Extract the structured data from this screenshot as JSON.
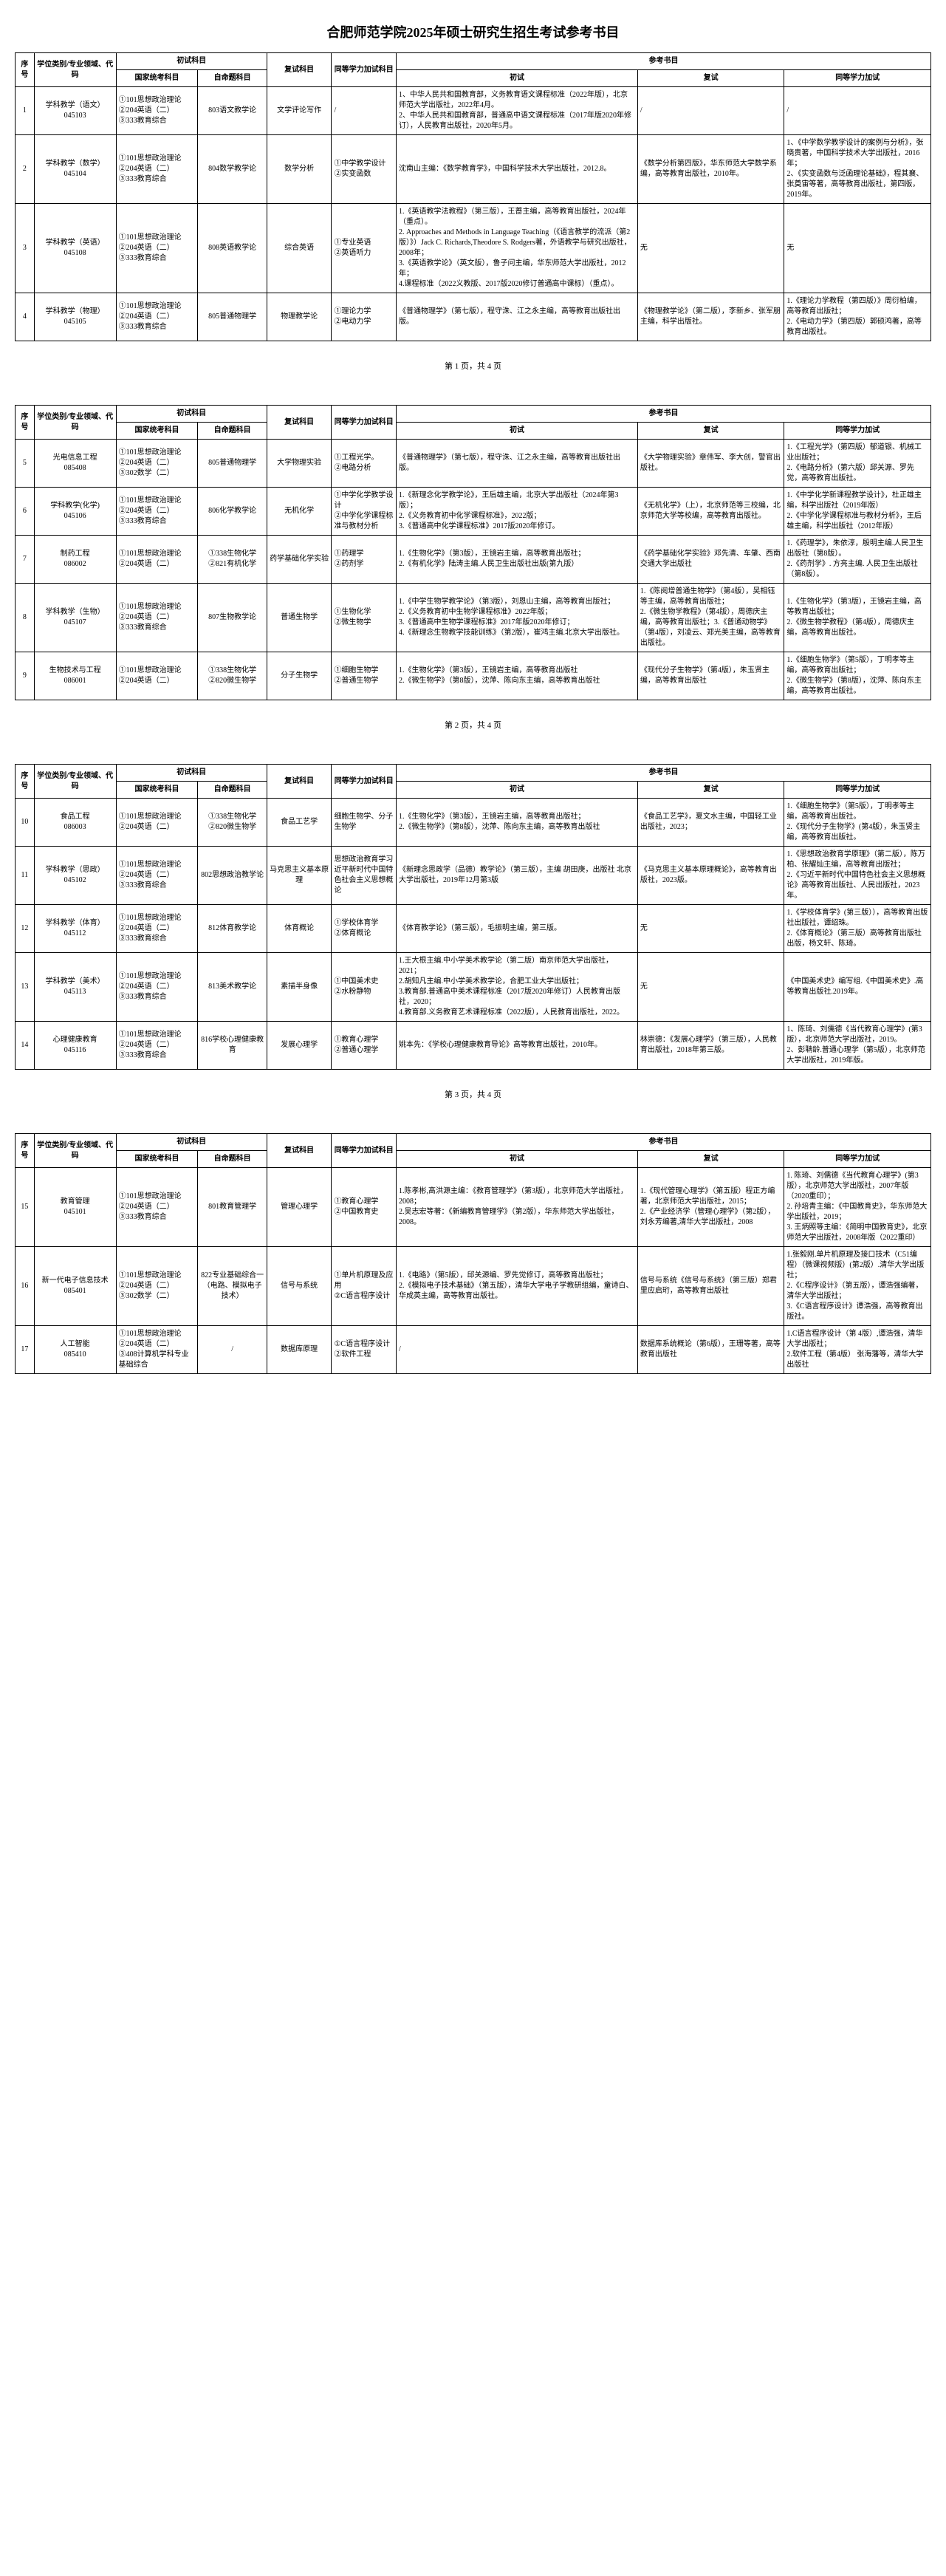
{
  "title": "合肥师范学院2025年硕士研究生招生考试参考书目",
  "headers": {
    "seq": "序号",
    "major": "学位类别/专业领域、代码",
    "prelim": "初试科目",
    "prelim_gov": "国家统考科目",
    "prelim_self": "自命题科目",
    "reexam": "复试科目",
    "same": "同等学力加试科目",
    "refs": "参考书目",
    "ref_prelim": "初试",
    "ref_reexam": "复试",
    "ref_same": "同等学力加试"
  },
  "footers": [
    "第 1 页，共 4 页",
    "第 2 页，共 4 页",
    "第 3 页，共 4 页"
  ],
  "pages": [
    [
      {
        "n": "1",
        "major": "学科教学（语文）\n045103",
        "e1": "①101思想政治理论\n②204英语（二）\n③333教育综合",
        "e2": "803语文教学论",
        "re": "文学评论写作",
        "sm": "/",
        "r1": "1、中华人民共和国教育部，义务教育语文课程标准（2022年版），北京师范大学出版社，2022年4月。\n2、中华人民共和国教育部，普通高中语文课程标准（2017年版2020年修订），人民教育出版社，2020年5月。",
        "r2": "/",
        "r3": "/"
      },
      {
        "n": "2",
        "major": "学科教学（数学）\n045104",
        "e1": "①101思想政治理论\n②204英语（二）\n③333教育综合",
        "e2": "804数学教学论",
        "re": "数学分析",
        "sm": "①中学教学设计\n②实变函数",
        "r1": "沈南山主编：《数学教育学》，中国科学技术大学出版社，2012.8。",
        "r2": "《数学分析第四版》，华东师范大学数学系编，高等教育出版社，2010年。",
        "r3": "1、《中学数学教学设计的案例与分析》，张晓贵著，中国科学技术大学出版社，2016年；\n2、《实变函数与泛函理论基础》，程其襄、张奠宙等著，高等教育出版社，第四版，2019年。"
      },
      {
        "n": "3",
        "major": "学科教学（英语）\n045108",
        "e1": "①101思想政治理论\n②204英语（二）\n③333教育综合",
        "e2": "808英语教学论",
        "re": "综合英语",
        "sm": "①专业英语\n②英语听力",
        "r1": "1.《英语教学法教程》（第三版），王蔷主编，高等教育出版社，2024年（重点）。\n2. Approaches and Methods in Language Teaching（《语言教学的流派（第2版）》）Jack C. Richards,Theodore S. Rodgers著，外语教学与研究出版社，2008年；\n3.《英语教学论》（英文版），鲁子问主编，华东师范大学出版社，2012年；\n4.课程标准（2022义教版、2017版2020修订普通高中课标）（重点）。",
        "r2": "无",
        "r3": "无"
      },
      {
        "n": "4",
        "major": "学科教学（物理）\n045105",
        "e1": "①101思想政治理论\n②204英语（二）\n③333教育综合",
        "e2": "805普通物理学",
        "re": "物理教学论",
        "sm": "①理论力学\n②电动力学",
        "r1": "《普通物理学》（第七版），程守洙、江之永主编，高等教育出版社出版。",
        "r2": "《物理教学论》（第二版），李新乡、张军朋主编，科学出版社。",
        "r3": "1.《理论力学教程（第四版）》周衍柏编，高等教育出版社；\n2.《电动力学》（第四版）郭硕鸿著，高等教育出版社。"
      }
    ],
    [
      {
        "n": "5",
        "major": "光电信息工程\n085408",
        "e1": "①101思想政治理论\n②204英语（二）\n③302数学（二）",
        "e2": "805普通物理学",
        "re": "大学物理实验",
        "sm": "①工程光学。\n②电路分析",
        "r1": "《普通物理学》（第七版），程守洙、江之永主编，高等教育出版社出版。",
        "r2": "《大学物理实验》章伟军、李大创，警官出版社。",
        "r3": "1.《工程光学》（第四版）郁道银、机械工业出版社；\n2.《电路分析》（第六版）邱关源、罗先觉，高等教育出版社。"
      },
      {
        "n": "6",
        "major": "学科教学(化学)\n045106",
        "e1": "①101思想政治理论\n②204英语（二）\n③333教育综合",
        "e2": "806化学教学论",
        "re": "无机化学",
        "sm": "①中学化学教学设计\n②中学化学课程标准与教材分析",
        "r1": "1.《新理念化学教学论》，王后雄主编，北京大学出版社（2024年第3版）；\n2.《义务教育初中化学课程标准》，2022版；\n3.《普通高中化学课程标准》2017版2020年修订。",
        "r2": "《无机化学》（上），北京师范等三校编，北京师范大学等校编，高等教育出版社。",
        "r3": "1.《中学化学新课程教学设计》，杜正雄主编，科学出版社（2019年版）\n2.《中学化学课程标准与教材分析》，王后雄主编，科学出版社（2012年版）"
      },
      {
        "n": "7",
        "major": "制药工程\n086002",
        "e1": "①101思想政治理论\n②204英语（二）",
        "e2": "①338生物化学\n②821有机化学",
        "re": "药学基础化学实验",
        "sm": "①药理学\n②药剂学",
        "r1": "1.《生物化学》（第3版），王镜岩主编，高等教育出版社；\n2.《有机化学》陆涛主编.人民卫生出版社出版(第九版）",
        "r2": "《药学基础化学实验》邓先清、车肇、西南交通大学出版社",
        "r3": "1.《药理学》，朱依淳，殷明主编.人民卫生出版社（第8版）。\n2.《药剂学》. 方亮主编. 人民卫生出版社（第8版）。"
      },
      {
        "n": "8",
        "major": "学科教学（生物）\n045107",
        "e1": "①101思想政治理论\n②204英语（二）\n③333教育综合",
        "e2": "807生物教学论",
        "re": "普通生物学",
        "sm": "①生物化学\n②微生物学",
        "r1": "1.《中学生物学教学论》（第3版），刘恩山主编，高等教育出版社；\n2.《义务教育初中生物学课程标准》2022年版；\n3.《普通高中生物学课程标准》2017年版2020年修订；\n4.《新理念生物教学技能训练》（第2版），崔鸿主编.北京大学出版社。",
        "r2": "1.《陈阅增普通生物学》（第4版），吴相钰等主编，高等教育出版社；\n2.《微生物学教程》（第4版），周德庆主编，高等教育出版社；3.《普通动物学》（第4版），刘凌云、郑光美主编，高等教育出版社。",
        "r3": "1.《生物化学》（第3版），王镜岩主编，高等教育出版社；\n2.《微生物学教程》（第4版），周德庆主编，高等教育出版社。"
      },
      {
        "n": "9",
        "major": "生物技术与工程\n086001",
        "e1": "①101思想政治理论\n②204英语（二）",
        "e2": "①338生物化学\n②820微生物学",
        "re": "分子生物学",
        "sm": "①细胞生物学\n②普通生物学",
        "r1": "1.《生物化学》（第3版），王镜岩主编，高等教育出版社\n2.《微生物学》（第8版），沈萍、陈向东主编，高等教育出版社",
        "r2": "《现代分子生物学》（第4版），朱玉贤主编，高等教育出版社",
        "r3": "1.《细胞生物学》（第5版），丁明孝等主编，高等教育出版社；\n2.《微生物学》（第8版），沈萍、陈向东主编，高等教育出版社。"
      }
    ],
    [
      {
        "n": "10",
        "major": "食品工程\n086003",
        "e1": "①101思想政治理论\n②204英语（二）",
        "e2": "①338生物化学\n②820微生物学",
        "re": "食品工艺学",
        "sm": "细胞生物学、分子生物学",
        "r1": "1.《生物化学》（第3版），王镜岩主编，高等教育出版社；\n2.《微生物学》（第8版），沈萍、陈向东主编，高等教育出版社",
        "r2": "《食品工艺学》，夏文水主编，中国轻工业出版社，2023；",
        "r3": "1.《细胞生物学》（第5版），丁明孝等主编，高等教育出版社。\n2.《现代分子生物学》(第4版），朱玉贤主编，高等教育出版社。"
      },
      {
        "n": "11",
        "major": "学科教学（思政）\n045102",
        "e1": "①101思想政治理论\n②204英语（二）\n③333教育综合",
        "e2": "802思想政治教学论",
        "re": "马克思主义基本原理",
        "sm": "思想政治教育学习近平新时代中国特色社会主义思想概论",
        "r1": "《新理念思政学（品德）教学论》（第三版），主编 胡田庚，出版社 北京大学出版社，2019年12月第3版",
        "r2": "《马克思主义基本原理概论》，高等教育出版社，2023版。",
        "r3": "1.《思想政治教育学原理》（第二版），陈万柏、张耀灿主编，高等教育出版社；\n2.《习近平新时代中国特色社会主义思想概论》高等教育出版社、人民出版社，2023年。"
      },
      {
        "n": "12",
        "major": "学科教学（体育）\n045112",
        "e1": "①101思想政治理论\n②204英语（二）\n③333教育综合",
        "e2": "812体育教学论",
        "re": "体育概论",
        "sm": "①学校体育学\n②体育概论",
        "r1": "《体育教学论》（第三版），毛振明主编，第三版。",
        "r2": "无",
        "r3": "1.《学校体育学》(第三版）），高等教育出版社出版社，谭绍珠。\n2.《体育概论》（第三版）高等教育出版社出版，杨文轩、陈琦。"
      },
      {
        "n": "13",
        "major": "学科教学（美术）\n045113",
        "e1": "①101思想政治理论\n②204英语（二）\n③333教育综合",
        "e2": "813美术教学论",
        "re": "素描半身像",
        "sm": "①中国美术史\n②水粉静物",
        "r1": "1.王大根主编.中小学美术教学论（第二版）南京师范大学出版社，2021；\n2.胡知凡主编.中小学美术教学论，合肥工业大学出版社；\n3.教育部.普通高中美术课程标准（2017版2020年修订）人民教育出版社，2020；\n4.教育部.义务教育艺术课程标准（2022版），人民教育出版社，2022。",
        "r2": "无",
        "r3": "《中国美术史》编写组.《中国美术史》.高等教育出版社.2019年。"
      },
      {
        "n": "14",
        "major": "心理健康教育\n045116",
        "e1": "①101思想政治理论\n②204英语（二）\n③333教育综合",
        "e2": "816学校心理健康教育",
        "re": "发展心理学",
        "sm": "①教育心理学\n②普通心理学",
        "r1": "姚本先：《学校心理健康教育导论》高等教育出版社，2010年。",
        "r2": "林崇德：《发展心理学》（第三版），人民教育出版社，2018年第三版。",
        "r3": "1、陈琦、刘儒德《当代教育心理学》(第3版），北京师范大学出版社，2019。\n2、彭聃龄.普通心理学（第5版），北京师范大学出版社，2019年版。"
      }
    ],
    [
      {
        "n": "15",
        "major": "教育管理\n045101",
        "e1": "①101思想政治理论\n②204英语（二）\n③333教育综合",
        "e2": "801教育管理学",
        "re": "管理心理学",
        "sm": "①教育心理学\n②中国教育史",
        "r1": "1.陈孝彬,高洪源主编：《教育管理学》（第3版），北京师范大学出版社，2008；\n2.吴志宏等著：《新编教育管理学》（第2版），华东师范大学出版社，2008。",
        "r2": "1.《现代管理心理学》（第五版）程正方编著，北京师范大学出版社，2015；\n2.《产业经济学（管理心理学》（第2版），刘永芳编著,清华大学出版社，2008",
        "r3": "1. 陈琦、刘儒德《当代教育心理学》(第3版），北京师范大学出版社，2007年版（2020重印）；\n2. 孙培青主编：《中国教育史》，华东师范大学出版社，2019；\n3. 王炳照等主编：《简明中国教育史》，北京师范大学出版社，2008年版（2022重印）"
      },
      {
        "n": "16",
        "major": "新一代电子信息技术\n085401",
        "e1": "①101思想政治理论\n②204英语（二）\n③302数学（二）",
        "e2": "822专业基础综合一（电路、模拟电子技术）",
        "re": "信号与系统",
        "sm": "①单片机原理及应用\n②C语言程序设计",
        "r1": "1.《电路》（第5版），邱关源编、罗先觉修订，高等教育出版社；\n2.《模拟电子技术基础》（第五版），清华大学电子学教研组编，童诗白、华成英主编，高等教育出版社。",
        "r2": "信号与系统《信号与系统》（第三版）郑君里应启珩，高等教育出版社",
        "r3": "1.张毅刚.单片机原理及接口技术（C51编程）（微课视频版）(第2版）.清华大学出版社；\n2.《C程序设计》（第五版），谭浩强编著，清华大学出版社；\n3.《C语言程序设计》谭浩强，高等教育出版社。"
      },
      {
        "n": "17",
        "major": "人工智能\n085410",
        "e1": "①101思想政治理论\n②204英语（二）\n③408计算机学科专业基础综合",
        "e2": "/",
        "re": "数据库原理",
        "sm": "①C语言程序设计\n②软件工程",
        "r1": "/",
        "r2": "数据库系统概论（第6版），王珊等著，高等教育出版社",
        "r3": "1.C语言程序设计（第 4版）,谭浩强，清华大学出版社；\n2.软件工程（第4版） 张海藩等，清华大学出版社"
      }
    ]
  ]
}
